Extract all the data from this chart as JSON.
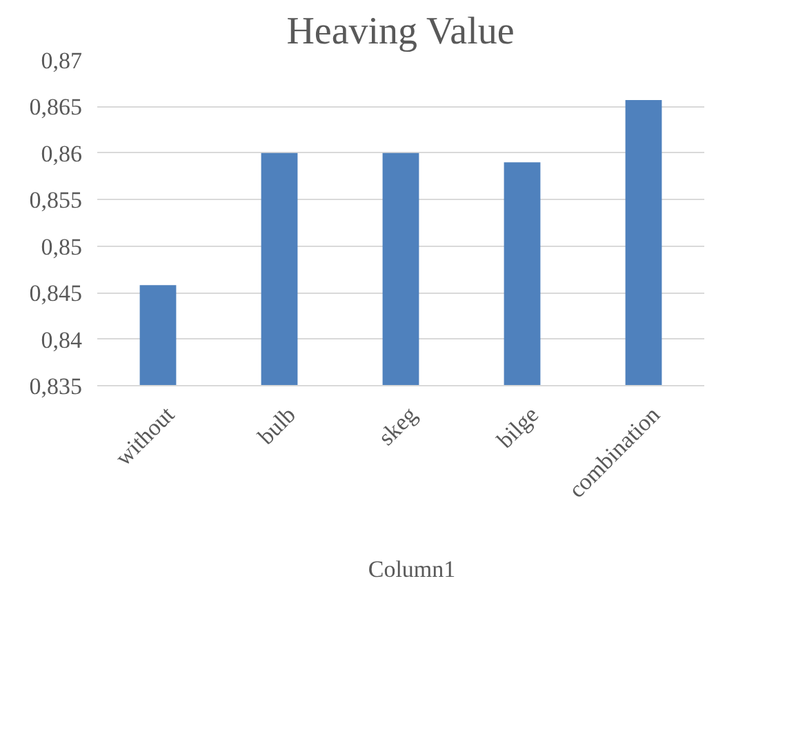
{
  "chart_data": {
    "type": "bar",
    "title": "Heaving Value",
    "categories": [
      "without",
      "bulb",
      "skeg",
      "bilge",
      "combination"
    ],
    "series": [
      {
        "name": "Column1",
        "color": "#4f81bd",
        "values": [
          0.8458,
          0.86,
          0.86,
          0.859,
          0.8657
        ]
      }
    ],
    "ylim": [
      0.835,
      0.87
    ],
    "yticks": [
      {
        "value": 0.835,
        "label": "0,835"
      },
      {
        "value": 0.84,
        "label": "0,84"
      },
      {
        "value": 0.845,
        "label": "0,845"
      },
      {
        "value": 0.85,
        "label": "0,85"
      },
      {
        "value": 0.855,
        "label": "0,855"
      },
      {
        "value": 0.86,
        "label": "0,86"
      },
      {
        "value": 0.865,
        "label": "0,865"
      },
      {
        "value": 0.87,
        "label": "0,87"
      }
    ],
    "grid": "y",
    "legend": "bottom"
  }
}
